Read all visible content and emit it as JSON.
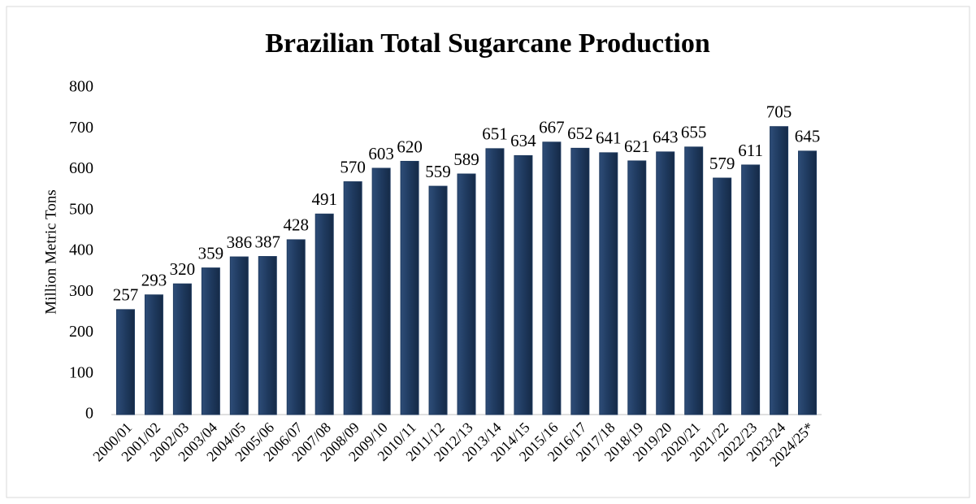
{
  "chart_data": {
    "type": "bar",
    "title": "Brazilian Total Sugarcane Production",
    "y_label": "Million Metric Tons",
    "categories": [
      "2000/01",
      "2001/02",
      "2002/03",
      "2003/04",
      "2004/05",
      "2005/06",
      "2006/07",
      "2007/08",
      "2008/09",
      "2009/10",
      "2010/11",
      "2011/12",
      "2012/13",
      "2013/14",
      "2014/15",
      "2015/16",
      "2016/17",
      "2017/18",
      "2018/19",
      "2019/20",
      "2020/21",
      "2021/22",
      "2022/23",
      "2023/24",
      "2024/25*"
    ],
    "values": [
      257,
      293,
      320,
      359,
      386,
      387,
      428,
      491,
      570,
      603,
      620,
      559,
      589,
      651,
      634,
      667,
      652,
      641,
      621,
      643,
      655,
      579,
      611,
      705,
      645
    ],
    "color": "#1f3a5f",
    "ylim": [
      0,
      800
    ],
    "yticks": [
      0,
      100,
      200,
      300,
      400,
      500,
      600,
      700,
      800
    ],
    "grid": false
  }
}
